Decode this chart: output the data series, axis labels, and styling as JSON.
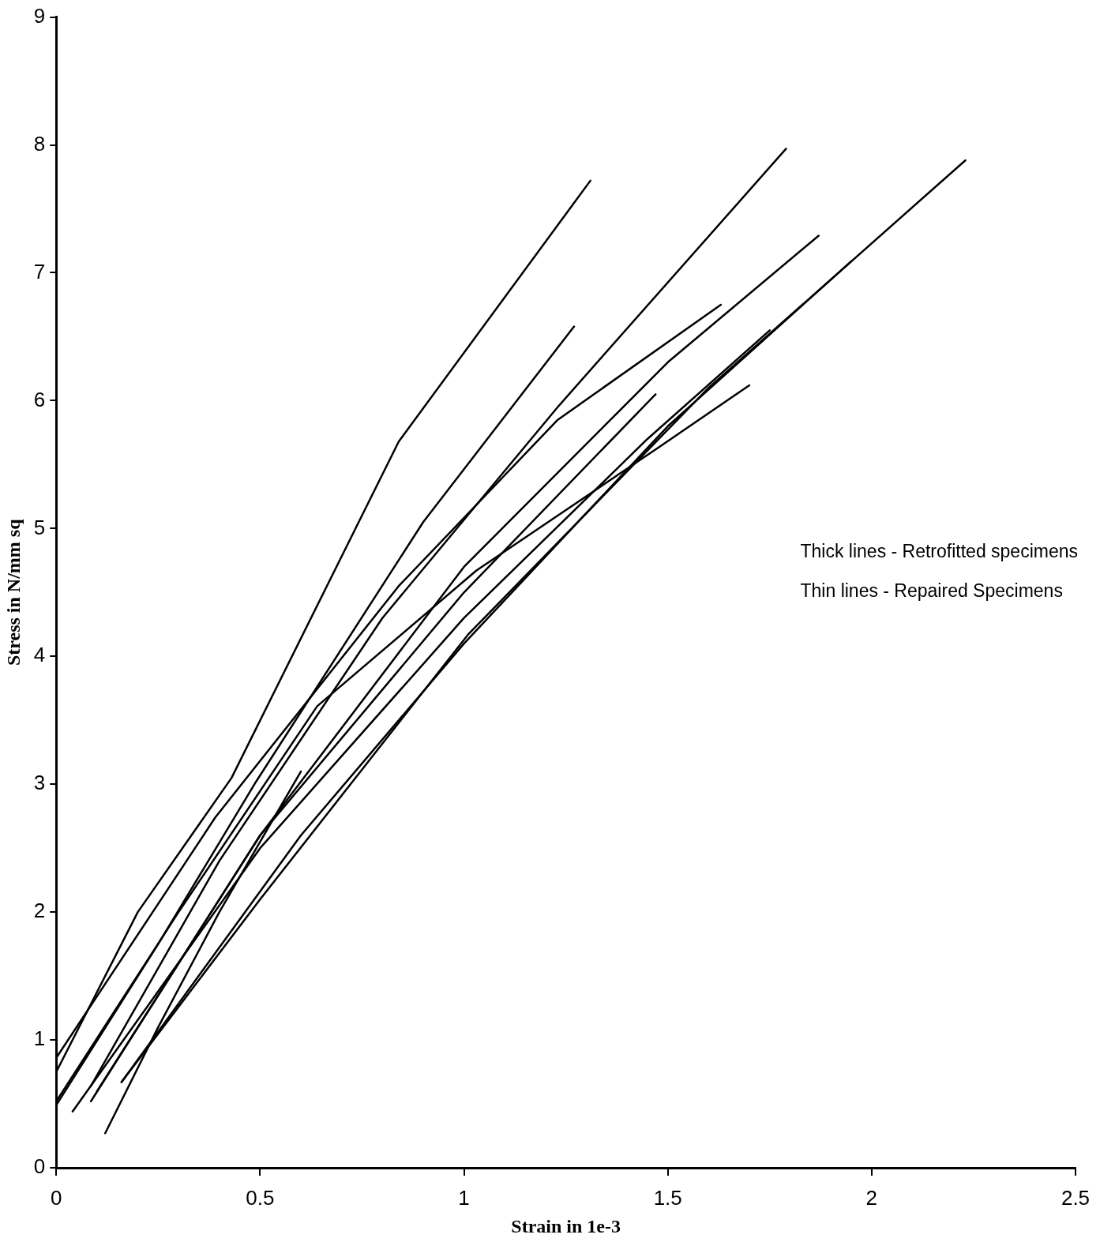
{
  "chart_data": {
    "type": "line",
    "xlabel": "Strain in 1e-3",
    "ylabel": "Stress in N/mm sq",
    "xlim": [
      0,
      2.5
    ],
    "xticks": [
      0,
      0.5,
      {
        "value": 1,
        "label": "1"
      },
      1.5,
      {
        "value": 2,
        "label": "2"
      },
      2.5
    ],
    "ylim": [
      0,
      9
    ],
    "yticks": [
      0,
      1,
      2,
      3,
      4,
      5,
      6,
      7,
      8,
      9
    ],
    "grid": false,
    "legend": false,
    "marker": "none",
    "line_style": "solid",
    "annotations": [
      "Thick lines - Retrofitted specimens",
      "Thin lines - Repaired Specimens"
    ],
    "series": [
      {
        "color": "#000000",
        "x": [
          0,
          0.2,
          0.43,
          0.84,
          1.31
        ],
        "values": [
          0.75,
          2.0,
          3.05,
          5.68,
          7.72
        ]
      },
      {
        "color": "#000000",
        "x": [
          0,
          0.25,
          0.49,
          0.9,
          1.27
        ],
        "values": [
          0.49,
          1.75,
          3.02,
          5.05,
          6.58
        ]
      },
      {
        "color": "#000000",
        "x": [
          0.085,
          0.4,
          0.8,
          1.23,
          1.79
        ],
        "values": [
          0.64,
          2.4,
          4.3,
          5.95,
          7.97
        ]
      },
      {
        "color": "#000000",
        "x": [
          0,
          0.39,
          0.84,
          1.23,
          1.63
        ],
        "values": [
          0.86,
          2.74,
          4.55,
          5.85,
          6.75
        ]
      },
      {
        "color": "#000000",
        "x": [
          0,
          0.3,
          0.64,
          1.03,
          1.48,
          1.7
        ],
        "values": [
          0.52,
          2.0,
          3.61,
          4.67,
          5.64,
          6.12
        ]
      },
      {
        "color": "#000000",
        "x": [
          0.085,
          0.5,
          1.0,
          1.5,
          1.87
        ],
        "values": [
          0.52,
          2.6,
          4.7,
          6.3,
          7.29
        ]
      },
      {
        "color": "#000000",
        "x": [
          0.16,
          0.5,
          1.01,
          1.6,
          2.23
        ],
        "values": [
          0.67,
          2.1,
          4.17,
          6.1,
          7.88
        ]
      },
      {
        "color": "#000000",
        "x": [
          0.16,
          0.6,
          1.0,
          1.5,
          1.95
        ],
        "values": [
          0.67,
          2.6,
          4.1,
          5.8,
          7.09
        ]
      },
      {
        "color": "#000000",
        "x": [
          0.1,
          0.5,
          1.0,
          1.47
        ],
        "values": [
          0.6,
          2.6,
          4.5,
          6.05
        ]
      },
      {
        "color": "#000000",
        "x": [
          0.04,
          0.5,
          1.0,
          1.45,
          1.75
        ],
        "values": [
          0.44,
          2.5,
          4.3,
          5.7,
          6.55
        ]
      },
      {
        "color": "#000000",
        "x": [
          0.12,
          0.25,
          0.4,
          0.6
        ],
        "values": [
          0.27,
          1.1,
          2.0,
          3.1
        ]
      }
    ]
  }
}
